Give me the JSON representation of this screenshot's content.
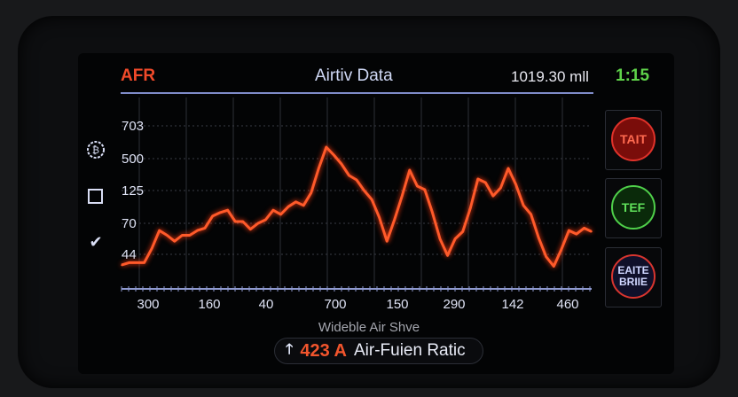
{
  "header": {
    "left_label": "AFR",
    "title": "Airtiv Data",
    "reading": "1019.30 mll",
    "time": "1:15"
  },
  "side_icons": [
    "dial-icon",
    "square-icon",
    "check-icon"
  ],
  "buttons": [
    {
      "label": "TAIT",
      "color": "#e0322a"
    },
    {
      "label": "TEF",
      "color": "#4fd04a"
    },
    {
      "label": "EAITE BRIIE",
      "color": "#d8352f"
    }
  ],
  "footer": {
    "label": "Wideble Air Shve",
    "value": "423 A",
    "text": "Air-Fuien Ratic",
    "arrow_icon": "arrow-up-icon"
  },
  "chart_data": {
    "type": "line",
    "title": "",
    "xlabel": "Wideble Air Shve",
    "ylabel": "",
    "y_tick_labels": [
      703,
      500,
      125,
      70,
      44
    ],
    "x_tick_labels": [
      "300",
      "160",
      "40",
      "700",
      "150",
      "290",
      "142",
      "460"
    ],
    "grid": true,
    "line_color": "#ff5a2a",
    "values": [
      35,
      37,
      37,
      37,
      49,
      64,
      60,
      55,
      60,
      60,
      64,
      66,
      82,
      88,
      92,
      73,
      73,
      65,
      70,
      76,
      92,
      85,
      98,
      106,
      100,
      121,
      385,
      571,
      522,
      437,
      302,
      250,
      125,
      110,
      80,
      55,
      76,
      116,
      365,
      177,
      135,
      88,
      57,
      43,
      57,
      63,
      95,
      260,
      219,
      116,
      156,
      385,
      198,
      100,
      85,
      58,
      42,
      34,
      48,
      64,
      61,
      66,
      63
    ]
  }
}
